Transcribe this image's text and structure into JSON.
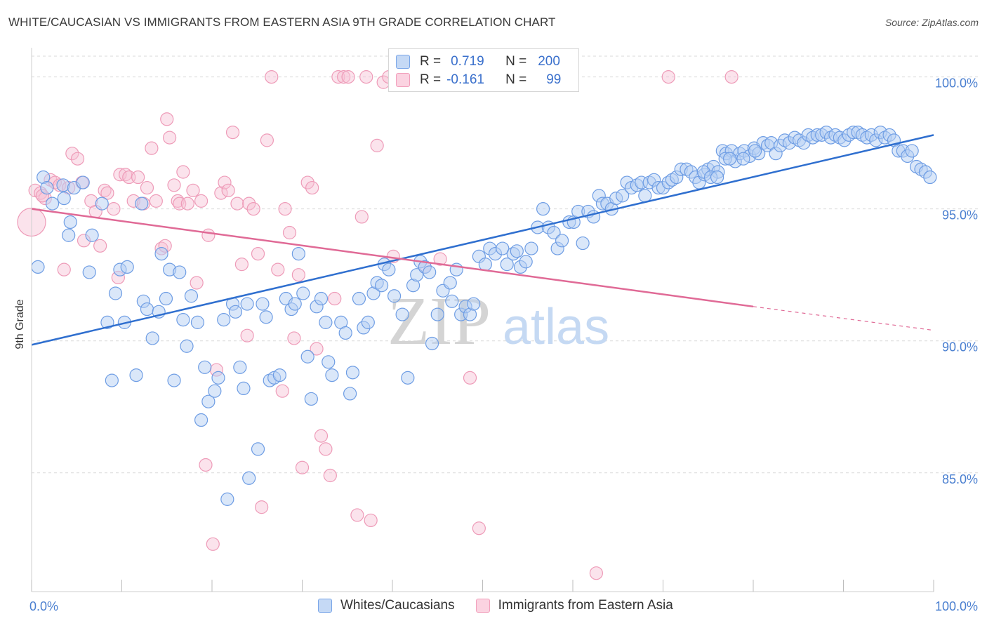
{
  "title": "WHITE/CAUCASIAN VS IMMIGRANTS FROM EASTERN ASIA 9TH GRADE CORRELATION CHART",
  "source": "Source: ZipAtlas.com",
  "watermark": {
    "zip": "ZIP",
    "atlas": "atlas"
  },
  "colors": {
    "blue": "#7aa6e8",
    "blue_line": "#2f6fcf",
    "pink": "#f2a0bc",
    "pink_line": "#e06a96",
    "grid": "#d9d9d9"
  },
  "legend": {
    "rows": [
      {
        "r_label": "R =",
        "r_value": "0.719",
        "n_label": "N =",
        "n_value": "200"
      },
      {
        "r_label": "R =",
        "r_value": "-0.161",
        "n_label": "N =",
        "n_value": "99"
      }
    ]
  },
  "bottom_legend": {
    "blue": "Whites/Caucasians",
    "pink": "Immigrants from Eastern Asia"
  },
  "chart_data": {
    "type": "scatter",
    "title": "WHITE/CAUCASIAN VS IMMIGRANTS FROM EASTERN ASIA 9TH GRADE CORRELATION CHART",
    "xlabel": "",
    "ylabel": "9th Grade",
    "xlim": [
      0,
      100
    ],
    "ylim": [
      80.5,
      101
    ],
    "x_tick_labels": [
      "0.0%",
      "100.0%"
    ],
    "y_ticks": [
      85,
      90,
      95,
      100
    ],
    "y_tick_labels": [
      "85.0%",
      "90.0%",
      "95.0%",
      "100.0%"
    ],
    "grid": true,
    "series": [
      {
        "name": "Whites/Caucasians",
        "color": "#7aa6e8",
        "trend": {
          "x0": 0,
          "y0": 89.85,
          "x1": 100,
          "y1": 97.8
        },
        "points": [
          [
            0.7,
            92.8
          ],
          [
            1.3,
            96.2
          ],
          [
            1.7,
            95.8
          ],
          [
            2.3,
            95.2
          ],
          [
            3.5,
            95.9
          ],
          [
            3.6,
            95.4
          ],
          [
            4.1,
            94.0
          ],
          [
            4.3,
            94.5
          ],
          [
            4.7,
            95.8
          ],
          [
            5.7,
            96.0
          ],
          [
            6.4,
            92.6
          ],
          [
            6.7,
            94.0
          ],
          [
            7.8,
            95.2
          ],
          [
            8.4,
            90.7
          ],
          [
            8.9,
            88.5
          ],
          [
            9.3,
            91.8
          ],
          [
            9.8,
            92.7
          ],
          [
            10.3,
            90.7
          ],
          [
            10.6,
            92.8
          ],
          [
            11.6,
            88.7
          ],
          [
            12.2,
            95.2
          ],
          [
            12.4,
            91.5
          ],
          [
            12.8,
            91.2
          ],
          [
            13.4,
            90.1
          ],
          [
            14.1,
            91.1
          ],
          [
            14.4,
            93.3
          ],
          [
            14.9,
            91.6
          ],
          [
            15.3,
            92.7
          ],
          [
            15.8,
            88.5
          ],
          [
            16.4,
            92.6
          ],
          [
            16.8,
            90.8
          ],
          [
            17.2,
            89.8
          ],
          [
            17.7,
            91.7
          ],
          [
            18.4,
            90.7
          ],
          [
            18.8,
            87.0
          ],
          [
            19.2,
            89.0
          ],
          [
            19.6,
            87.7
          ],
          [
            20.3,
            88.1
          ],
          [
            20.7,
            88.6
          ],
          [
            21.3,
            90.8
          ],
          [
            21.7,
            84.0
          ],
          [
            22.3,
            91.4
          ],
          [
            22.6,
            91.1
          ],
          [
            23.1,
            89.0
          ],
          [
            23.5,
            88.2
          ],
          [
            23.9,
            91.4
          ],
          [
            24.1,
            84.8
          ],
          [
            25.1,
            85.9
          ],
          [
            25.6,
            91.4
          ],
          [
            26.0,
            90.9
          ],
          [
            26.4,
            88.5
          ],
          [
            26.9,
            88.6
          ],
          [
            27.5,
            88.7
          ],
          [
            28.2,
            91.6
          ],
          [
            28.8,
            91.2
          ],
          [
            29.2,
            91.4
          ],
          [
            29.6,
            93.3
          ],
          [
            30.1,
            91.8
          ],
          [
            30.6,
            89.4
          ],
          [
            31.0,
            87.8
          ],
          [
            31.6,
            91.3
          ],
          [
            32.1,
            91.6
          ],
          [
            32.6,
            90.7
          ],
          [
            32.9,
            89.2
          ],
          [
            33.3,
            88.7
          ],
          [
            34.3,
            90.7
          ],
          [
            34.8,
            90.3
          ],
          [
            35.3,
            88.0
          ],
          [
            35.6,
            88.8
          ],
          [
            36.3,
            91.6
          ],
          [
            36.8,
            90.5
          ],
          [
            37.3,
            90.7
          ],
          [
            37.9,
            91.8
          ],
          [
            38.3,
            92.2
          ],
          [
            38.8,
            92.1
          ],
          [
            39.1,
            92.9
          ],
          [
            39.6,
            92.7
          ],
          [
            40.2,
            91.7
          ],
          [
            41.1,
            91.0
          ],
          [
            41.7,
            88.6
          ],
          [
            42.3,
            92.1
          ],
          [
            42.7,
            92.5
          ],
          [
            43.1,
            93.0
          ],
          [
            43.6,
            92.8
          ],
          [
            44.1,
            92.6
          ],
          [
            44.4,
            89.9
          ],
          [
            45.0,
            91.0
          ],
          [
            45.6,
            91.9
          ],
          [
            46.4,
            92.2
          ],
          [
            46.6,
            91.5
          ],
          [
            47.1,
            92.7
          ],
          [
            47.6,
            91.0
          ],
          [
            48.1,
            91.3
          ],
          [
            48.6,
            91.0
          ],
          [
            49.0,
            91.4
          ],
          [
            49.6,
            93.2
          ],
          [
            50.3,
            92.9
          ],
          [
            50.8,
            93.5
          ],
          [
            51.4,
            93.3
          ],
          [
            52.2,
            93.5
          ],
          [
            52.7,
            92.9
          ],
          [
            53.4,
            93.3
          ],
          [
            53.8,
            93.4
          ],
          [
            54.2,
            92.8
          ],
          [
            54.8,
            93.0
          ],
          [
            55.4,
            93.5
          ],
          [
            56.1,
            94.3
          ],
          [
            56.7,
            95.0
          ],
          [
            57.3,
            94.3
          ],
          [
            57.9,
            94.1
          ],
          [
            58.3,
            93.5
          ],
          [
            58.8,
            93.8
          ],
          [
            59.6,
            94.5
          ],
          [
            60.1,
            94.5
          ],
          [
            60.6,
            94.9
          ],
          [
            61.1,
            93.7
          ],
          [
            61.7,
            94.9
          ],
          [
            62.3,
            94.7
          ],
          [
            62.9,
            95.5
          ],
          [
            63.3,
            95.2
          ],
          [
            63.8,
            95.2
          ],
          [
            64.3,
            95.0
          ],
          [
            64.8,
            95.4
          ],
          [
            65.5,
            95.5
          ],
          [
            66.0,
            96.0
          ],
          [
            66.5,
            95.8
          ],
          [
            67.1,
            95.9
          ],
          [
            67.6,
            96.0
          ],
          [
            68.0,
            95.5
          ],
          [
            68.5,
            96.0
          ],
          [
            69.0,
            96.1
          ],
          [
            69.5,
            95.8
          ],
          [
            70.0,
            95.8
          ],
          [
            70.6,
            96.0
          ],
          [
            71.0,
            96.1
          ],
          [
            71.5,
            96.2
          ],
          [
            72.0,
            96.5
          ],
          [
            72.6,
            96.5
          ],
          [
            73.1,
            96.4
          ],
          [
            73.6,
            96.2
          ],
          [
            74.0,
            96.0
          ],
          [
            74.6,
            96.3
          ],
          [
            75.0,
            96.5
          ],
          [
            75.6,
            96.6
          ],
          [
            76.1,
            96.4
          ],
          [
            76.6,
            97.2
          ],
          [
            77.0,
            97.1
          ],
          [
            77.6,
            97.2
          ],
          [
            78.0,
            96.8
          ],
          [
            78.5,
            97.1
          ],
          [
            79.0,
            97.2
          ],
          [
            79.6,
            97.0
          ],
          [
            80.1,
            97.3
          ],
          [
            80.6,
            97.1
          ],
          [
            81.1,
            97.5
          ],
          [
            81.6,
            97.4
          ],
          [
            82.0,
            97.5
          ],
          [
            82.5,
            97.1
          ],
          [
            83.0,
            97.4
          ],
          [
            83.5,
            97.6
          ],
          [
            84.0,
            97.5
          ],
          [
            84.6,
            97.7
          ],
          [
            85.1,
            97.6
          ],
          [
            85.6,
            97.5
          ],
          [
            86.1,
            97.8
          ],
          [
            86.6,
            97.7
          ],
          [
            87.1,
            97.8
          ],
          [
            87.6,
            97.8
          ],
          [
            88.1,
            97.9
          ],
          [
            88.6,
            97.7
          ],
          [
            89.1,
            97.8
          ],
          [
            89.6,
            97.7
          ],
          [
            90.1,
            97.6
          ],
          [
            90.6,
            97.8
          ],
          [
            91.1,
            97.9
          ],
          [
            91.6,
            97.9
          ],
          [
            92.1,
            97.8
          ],
          [
            92.6,
            97.7
          ],
          [
            93.1,
            97.8
          ],
          [
            93.6,
            97.6
          ],
          [
            94.1,
            97.9
          ],
          [
            94.6,
            97.7
          ],
          [
            95.1,
            97.8
          ],
          [
            95.6,
            97.6
          ],
          [
            96.1,
            97.2
          ],
          [
            96.6,
            97.2
          ],
          [
            97.1,
            97.0
          ],
          [
            97.6,
            97.2
          ],
          [
            98.1,
            96.6
          ],
          [
            98.6,
            96.5
          ],
          [
            99.1,
            96.4
          ],
          [
            99.6,
            96.2
          ],
          [
            74.5,
            96.4
          ],
          [
            75.3,
            96.2
          ],
          [
            76.0,
            96.2
          ],
          [
            76.9,
            96.9
          ],
          [
            77.4,
            96.9
          ],
          [
            78.9,
            96.9
          ],
          [
            80.2,
            97.2
          ]
        ]
      },
      {
        "name": "Immigrants from Eastern Asia",
        "color": "#f2a0bc",
        "trend": {
          "x0": 0,
          "y0": 95.0,
          "x1": 80,
          "y1": 91.3
        },
        "trend_dashed": {
          "x0": 80,
          "y0": 91.3,
          "x1": 100,
          "y1": 90.4
        },
        "points": [
          [
            0,
            94.5
          ],
          [
            0.4,
            95.7
          ],
          [
            1.0,
            95.6
          ],
          [
            1.5,
            95.4
          ],
          [
            2.1,
            96.1
          ],
          [
            2.6,
            96.0
          ],
          [
            3.1,
            95.9
          ],
          [
            3.6,
            92.7
          ],
          [
            4.1,
            95.8
          ],
          [
            4.5,
            97.1
          ],
          [
            5.1,
            96.9
          ],
          [
            5.6,
            96.0
          ],
          [
            5.8,
            93.8
          ],
          [
            6.6,
            95.3
          ],
          [
            7.1,
            94.9
          ],
          [
            7.6,
            93.6
          ],
          [
            8.1,
            95.7
          ],
          [
            8.4,
            95.6
          ],
          [
            9.1,
            95.0
          ],
          [
            9.6,
            92.4
          ],
          [
            9.8,
            96.3
          ],
          [
            10.4,
            96.3
          ],
          [
            10.8,
            96.2
          ],
          [
            11.3,
            95.3
          ],
          [
            11.8,
            96.2
          ],
          [
            12.4,
            95.2
          ],
          [
            12.8,
            95.8
          ],
          [
            13.3,
            97.3
          ],
          [
            13.8,
            95.3
          ],
          [
            14.4,
            93.5
          ],
          [
            14.8,
            93.6
          ],
          [
            15.0,
            98.4
          ],
          [
            15.3,
            97.7
          ],
          [
            15.8,
            95.9
          ],
          [
            16.2,
            95.3
          ],
          [
            16.4,
            95.2
          ],
          [
            16.8,
            96.4
          ],
          [
            17.3,
            95.2
          ],
          [
            17.9,
            95.7
          ],
          [
            18.3,
            92.2
          ],
          [
            18.8,
            95.3
          ],
          [
            19.3,
            85.3
          ],
          [
            19.6,
            94.0
          ],
          [
            20.1,
            82.3
          ],
          [
            20.5,
            88.9
          ],
          [
            21.0,
            95.6
          ],
          [
            21.4,
            96.0
          ],
          [
            21.8,
            95.7
          ],
          [
            22.3,
            97.9
          ],
          [
            22.8,
            95.2
          ],
          [
            23.3,
            92.9
          ],
          [
            23.9,
            90.2
          ],
          [
            24.1,
            95.2
          ],
          [
            24.6,
            95.0
          ],
          [
            25.1,
            93.3
          ],
          [
            25.5,
            83.7
          ],
          [
            26.1,
            97.6
          ],
          [
            26.6,
            100
          ],
          [
            27.3,
            92.7
          ],
          [
            27.8,
            88.1
          ],
          [
            28.1,
            95.0
          ],
          [
            28.6,
            94.1
          ],
          [
            29.1,
            90.1
          ],
          [
            29.6,
            92.5
          ],
          [
            30.0,
            85.2
          ],
          [
            30.6,
            96.0
          ],
          [
            31.1,
            95.8
          ],
          [
            31.6,
            89.7
          ],
          [
            32.1,
            86.4
          ],
          [
            32.6,
            85.9
          ],
          [
            33.1,
            84.9
          ],
          [
            33.6,
            91.6
          ],
          [
            34.0,
            100
          ],
          [
            34.6,
            100
          ],
          [
            35.1,
            100
          ],
          [
            36.1,
            83.4
          ],
          [
            36.6,
            94.7
          ],
          [
            37.1,
            100
          ],
          [
            37.6,
            83.2
          ],
          [
            38.3,
            97.4
          ],
          [
            39.0,
            99.8
          ],
          [
            39.6,
            100
          ],
          [
            40.1,
            93.2
          ],
          [
            40.6,
            99.9
          ],
          [
            41.1,
            99.7
          ],
          [
            42.1,
            99.8
          ],
          [
            43.6,
            92.8
          ],
          [
            45.3,
            93.1
          ],
          [
            48.6,
            88.6
          ],
          [
            49.6,
            82.9
          ],
          [
            54.6,
            99.7
          ],
          [
            62.6,
            81.2
          ],
          [
            70.6,
            100
          ],
          [
            77.6,
            100
          ],
          [
            1.2,
            95.5
          ]
        ]
      }
    ]
  }
}
